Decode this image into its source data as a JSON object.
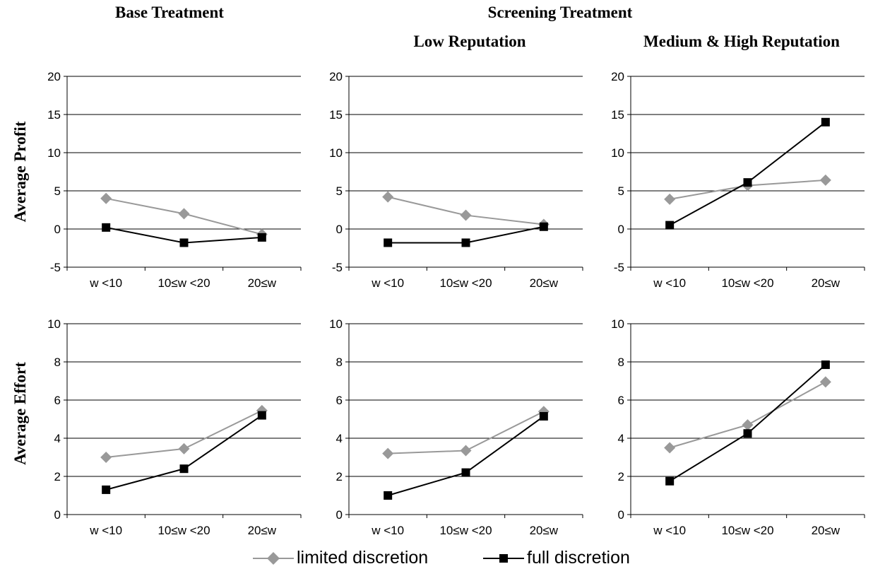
{
  "headers": {
    "base": "Base Treatment",
    "screening": "Screening Treatment",
    "low": "Low Reputation",
    "medhigh": "Medium & High Reputation"
  },
  "ylabels": {
    "profit": "Average Profit",
    "effort": "Average Effort"
  },
  "legend": {
    "limited": "limited discretion",
    "full": "full discretion"
  },
  "colors": {
    "limited": "#999999",
    "full": "#000000"
  },
  "chart_data": [
    {
      "type": "line",
      "panel": "Base Treatment - Profit",
      "categories": [
        "w <10",
        "10≤w <20",
        "20≤w"
      ],
      "ylim": [
        -5,
        20
      ],
      "yticks": [
        -5,
        0,
        5,
        10,
        15,
        20
      ],
      "series": [
        {
          "name": "limited discretion",
          "values": [
            4.0,
            2.0,
            -0.7
          ]
        },
        {
          "name": "full discretion",
          "values": [
            0.2,
            -1.8,
            -1.1
          ]
        }
      ]
    },
    {
      "type": "line",
      "panel": "Low Reputation - Profit",
      "categories": [
        "w <10",
        "10≤w <20",
        "20≤w"
      ],
      "ylim": [
        -5,
        20
      ],
      "yticks": [
        -5,
        0,
        5,
        10,
        15,
        20
      ],
      "series": [
        {
          "name": "limited discretion",
          "values": [
            4.2,
            1.8,
            0.6
          ]
        },
        {
          "name": "full discretion",
          "values": [
            -1.8,
            -1.8,
            0.3
          ]
        }
      ]
    },
    {
      "type": "line",
      "panel": "Medium & High Reputation - Profit",
      "categories": [
        "w <10",
        "10≤w <20",
        "20≤w"
      ],
      "ylim": [
        -5,
        20
      ],
      "yticks": [
        -5,
        0,
        5,
        10,
        15,
        20
      ],
      "series": [
        {
          "name": "limited discretion",
          "values": [
            3.9,
            5.7,
            6.4
          ]
        },
        {
          "name": "full discretion",
          "values": [
            0.5,
            6.1,
            14.0
          ]
        }
      ]
    },
    {
      "type": "line",
      "panel": "Base Treatment - Effort",
      "categories": [
        "w <10",
        "10≤w <20",
        "20≤w"
      ],
      "ylim": [
        0,
        10
      ],
      "yticks": [
        0,
        2,
        4,
        6,
        8,
        10
      ],
      "series": [
        {
          "name": "limited discretion",
          "values": [
            3.0,
            3.45,
            5.45
          ]
        },
        {
          "name": "full discretion",
          "values": [
            1.3,
            2.4,
            5.2
          ]
        }
      ]
    },
    {
      "type": "line",
      "panel": "Low Reputation - Effort",
      "categories": [
        "w <10",
        "10≤w <20",
        "20≤w"
      ],
      "ylim": [
        0,
        10
      ],
      "yticks": [
        0,
        2,
        4,
        6,
        8,
        10
      ],
      "series": [
        {
          "name": "limited discretion",
          "values": [
            3.2,
            3.35,
            5.4
          ]
        },
        {
          "name": "full discretion",
          "values": [
            1.0,
            2.2,
            5.15
          ]
        }
      ]
    },
    {
      "type": "line",
      "panel": "Medium & High Reputation - Effort",
      "categories": [
        "w <10",
        "10≤w <20",
        "20≤w"
      ],
      "ylim": [
        0,
        10
      ],
      "yticks": [
        0,
        2,
        4,
        6,
        8,
        10
      ],
      "series": [
        {
          "name": "limited discretion",
          "values": [
            3.5,
            4.7,
            6.95
          ]
        },
        {
          "name": "full discretion",
          "values": [
            1.75,
            4.25,
            7.85
          ]
        }
      ]
    }
  ]
}
